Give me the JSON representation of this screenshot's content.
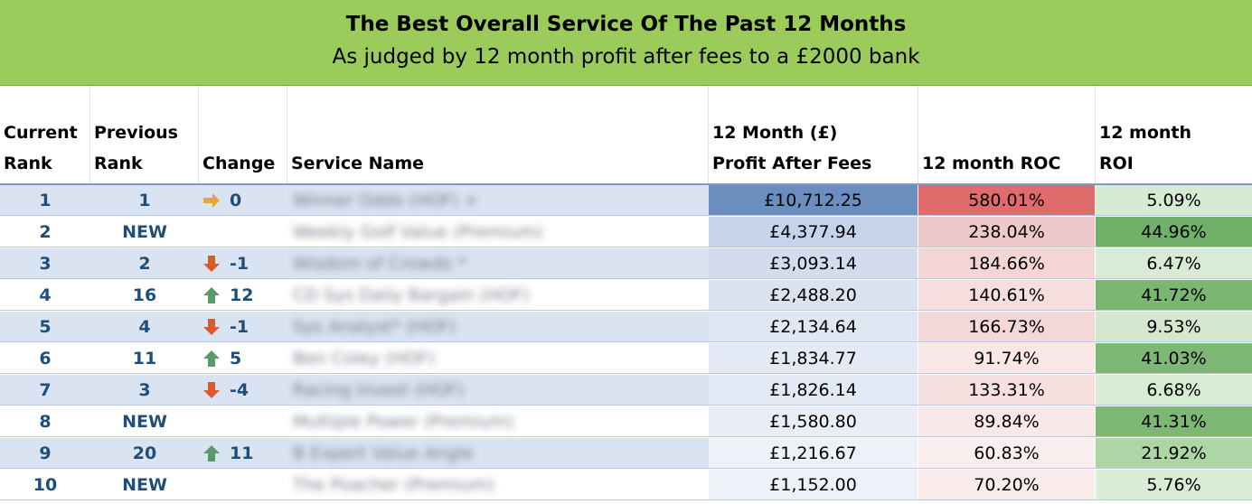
{
  "banner": {
    "title": "The Best Overall Service Of The Past 12 Months",
    "subtitle": "As judged by 12 month profit after fees to a £2000 bank",
    "color": "#9bcc5b"
  },
  "headers": {
    "current_rank": "Current\nRank",
    "previous_rank": "Previous\nRank",
    "change": "Change",
    "service_name": "Service Name",
    "profit": "12 Month (£)\nProfit After Fees",
    "roc": "12 month ROC",
    "roi": "12 month\nROI"
  },
  "rows": [
    {
      "rank": "1",
      "prev": "1",
      "dir": "flat",
      "change": "0",
      "name": "Winner Odds (HOF) +",
      "profit": "£10,712.25",
      "roc": "580.01%",
      "roi": "5.09%",
      "profit_bg": "#6c8ebf",
      "roc_bg": "#e06b6b",
      "roi_bg": "#d7ead3"
    },
    {
      "rank": "2",
      "prev": "NEW",
      "dir": "none",
      "change": "",
      "name": "Weekly Golf Value (Premium)",
      "profit": "£4,377.94",
      "roc": "238.04%",
      "roi": "44.96%",
      "profit_bg": "#c6d3ea",
      "roc_bg": "#efc9c9",
      "roi_bg": "#70b069"
    },
    {
      "rank": "3",
      "prev": "2",
      "dir": "down",
      "change": "-1",
      "name": "Wisdom of Crowds *",
      "profit": "£3,093.14",
      "roc": "184.66%",
      "roi": "6.47%",
      "profit_bg": "#d2dced",
      "roc_bg": "#f3d5d5",
      "roi_bg": "#d8ebd4"
    },
    {
      "rank": "4",
      "prev": "16",
      "dir": "up",
      "change": "12",
      "name": "CD Sys Daily Bargain (HOF)",
      "profit": "£2,488.20",
      "roc": "140.61%",
      "roi": "41.72%",
      "profit_bg": "#dbe3f1",
      "roc_bg": "#f6dede",
      "roi_bg": "#7bb673"
    },
    {
      "rank": "5",
      "prev": "4",
      "dir": "down",
      "change": "-1",
      "name": "Sys Analyst* (HOF)",
      "profit": "£2,134.64",
      "roc": "166.73%",
      "roi": "9.53%",
      "profit_bg": "#e0e7f3",
      "roc_bg": "#f4d8d8",
      "roi_bg": "#d3e8cf"
    },
    {
      "rank": "6",
      "prev": "11",
      "dir": "up",
      "change": "5",
      "name": "Ben Coley (HOF)",
      "profit": "£1,834.77",
      "roc": "91.74%",
      "roi": "41.03%",
      "profit_bg": "#e4eaf5",
      "roc_bg": "#f9e7e7",
      "roi_bg": "#7eb876"
    },
    {
      "rank": "7",
      "prev": "3",
      "dir": "down",
      "change": "-4",
      "name": "Racing Invest (HOF)",
      "profit": "£1,826.14",
      "roc": "133.31%",
      "roi": "6.68%",
      "profit_bg": "#e4eaf5",
      "roc_bg": "#f7e0e0",
      "roi_bg": "#d8ebd4"
    },
    {
      "rank": "8",
      "prev": "NEW",
      "dir": "none",
      "change": "",
      "name": "Multiple Power (Premium)",
      "profit": "£1,580.80",
      "roc": "89.84%",
      "roi": "41.31%",
      "profit_bg": "#e8edf6",
      "roc_bg": "#f9e8e8",
      "roi_bg": "#7cb774"
    },
    {
      "rank": "9",
      "prev": "20",
      "dir": "up",
      "change": "11",
      "name": "B Expert Value Angle",
      "profit": "£1,216.67",
      "roc": "60.83%",
      "roi": "21.92%",
      "profit_bg": "#edf1f8",
      "roc_bg": "#fbeeee",
      "roi_bg": "#aed5a6"
    },
    {
      "rank": "10",
      "prev": "NEW",
      "dir": "none",
      "change": "",
      "name": "The Poacher (Premium)",
      "profit": "£1,152.00",
      "roc": "70.20%",
      "roi": "5.76%",
      "profit_bg": "#eef2f8",
      "roc_bg": "#faebeb",
      "roi_bg": "#d9ecd5"
    }
  ],
  "colors": {
    "flat_arrow": "#e8a33a",
    "down_arrow": "#d95b2b",
    "up_arrow": "#5a9a6a"
  }
}
